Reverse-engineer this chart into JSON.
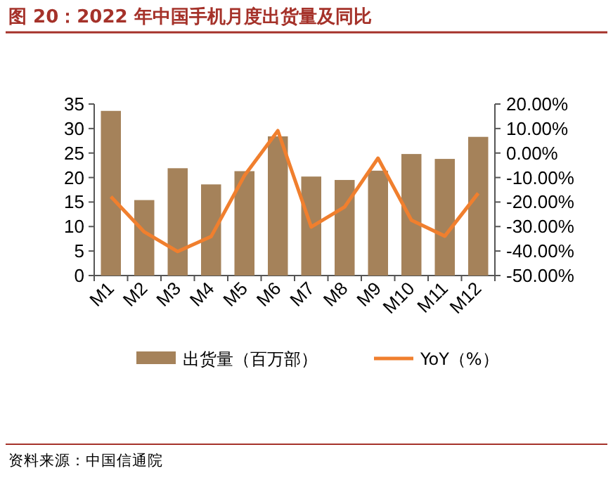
{
  "chart_data": {
    "type": "bar",
    "title": "图 20：2022 年中国手机月度出货量及同比",
    "categories": [
      "M1",
      "M2",
      "M3",
      "M4",
      "M5",
      "M6",
      "M7",
      "M8",
      "M9",
      "M10",
      "M11",
      "M12"
    ],
    "series": [
      {
        "name": "出货量（百万部）",
        "color": "#a5825a",
        "values": [
          33.6,
          15.4,
          21.9,
          18.6,
          21.3,
          28.4,
          20.2,
          19.5,
          21.4,
          24.8,
          23.8,
          28.3
        ]
      },
      {
        "name": "YoY（%）",
        "type": "line",
        "axis": "y2",
        "color": "#f07f2e",
        "values": [
          -17.8,
          -32.2,
          -40.2,
          -34.1,
          -9.2,
          9.1,
          -30.2,
          -22,
          -2.1,
          -27.4,
          -33.9,
          -16.4
        ]
      }
    ],
    "ylim": [
      0,
      35
    ],
    "yticks": [
      0,
      5,
      10,
      15,
      20,
      25,
      30,
      35
    ],
    "y2lim": [
      -50,
      20
    ],
    "y2ticks": [
      {
        "value": 20,
        "label": "20.00%"
      },
      {
        "value": 10,
        "label": "10.00%"
      },
      {
        "value": 0,
        "label": "0.00%"
      },
      {
        "value": -10,
        "label": "-10.00%"
      },
      {
        "value": -20,
        "label": "-20.00%"
      },
      {
        "value": -30,
        "label": "-30.00%"
      },
      {
        "value": -40,
        "label": "-40.00%"
      },
      {
        "value": -50,
        "label": "-50.00%"
      }
    ],
    "grid": false,
    "legend": "bottom",
    "marker": "none",
    "line_style": "solid",
    "annotations": [
      "资料来源：中国信通院"
    ]
  }
}
